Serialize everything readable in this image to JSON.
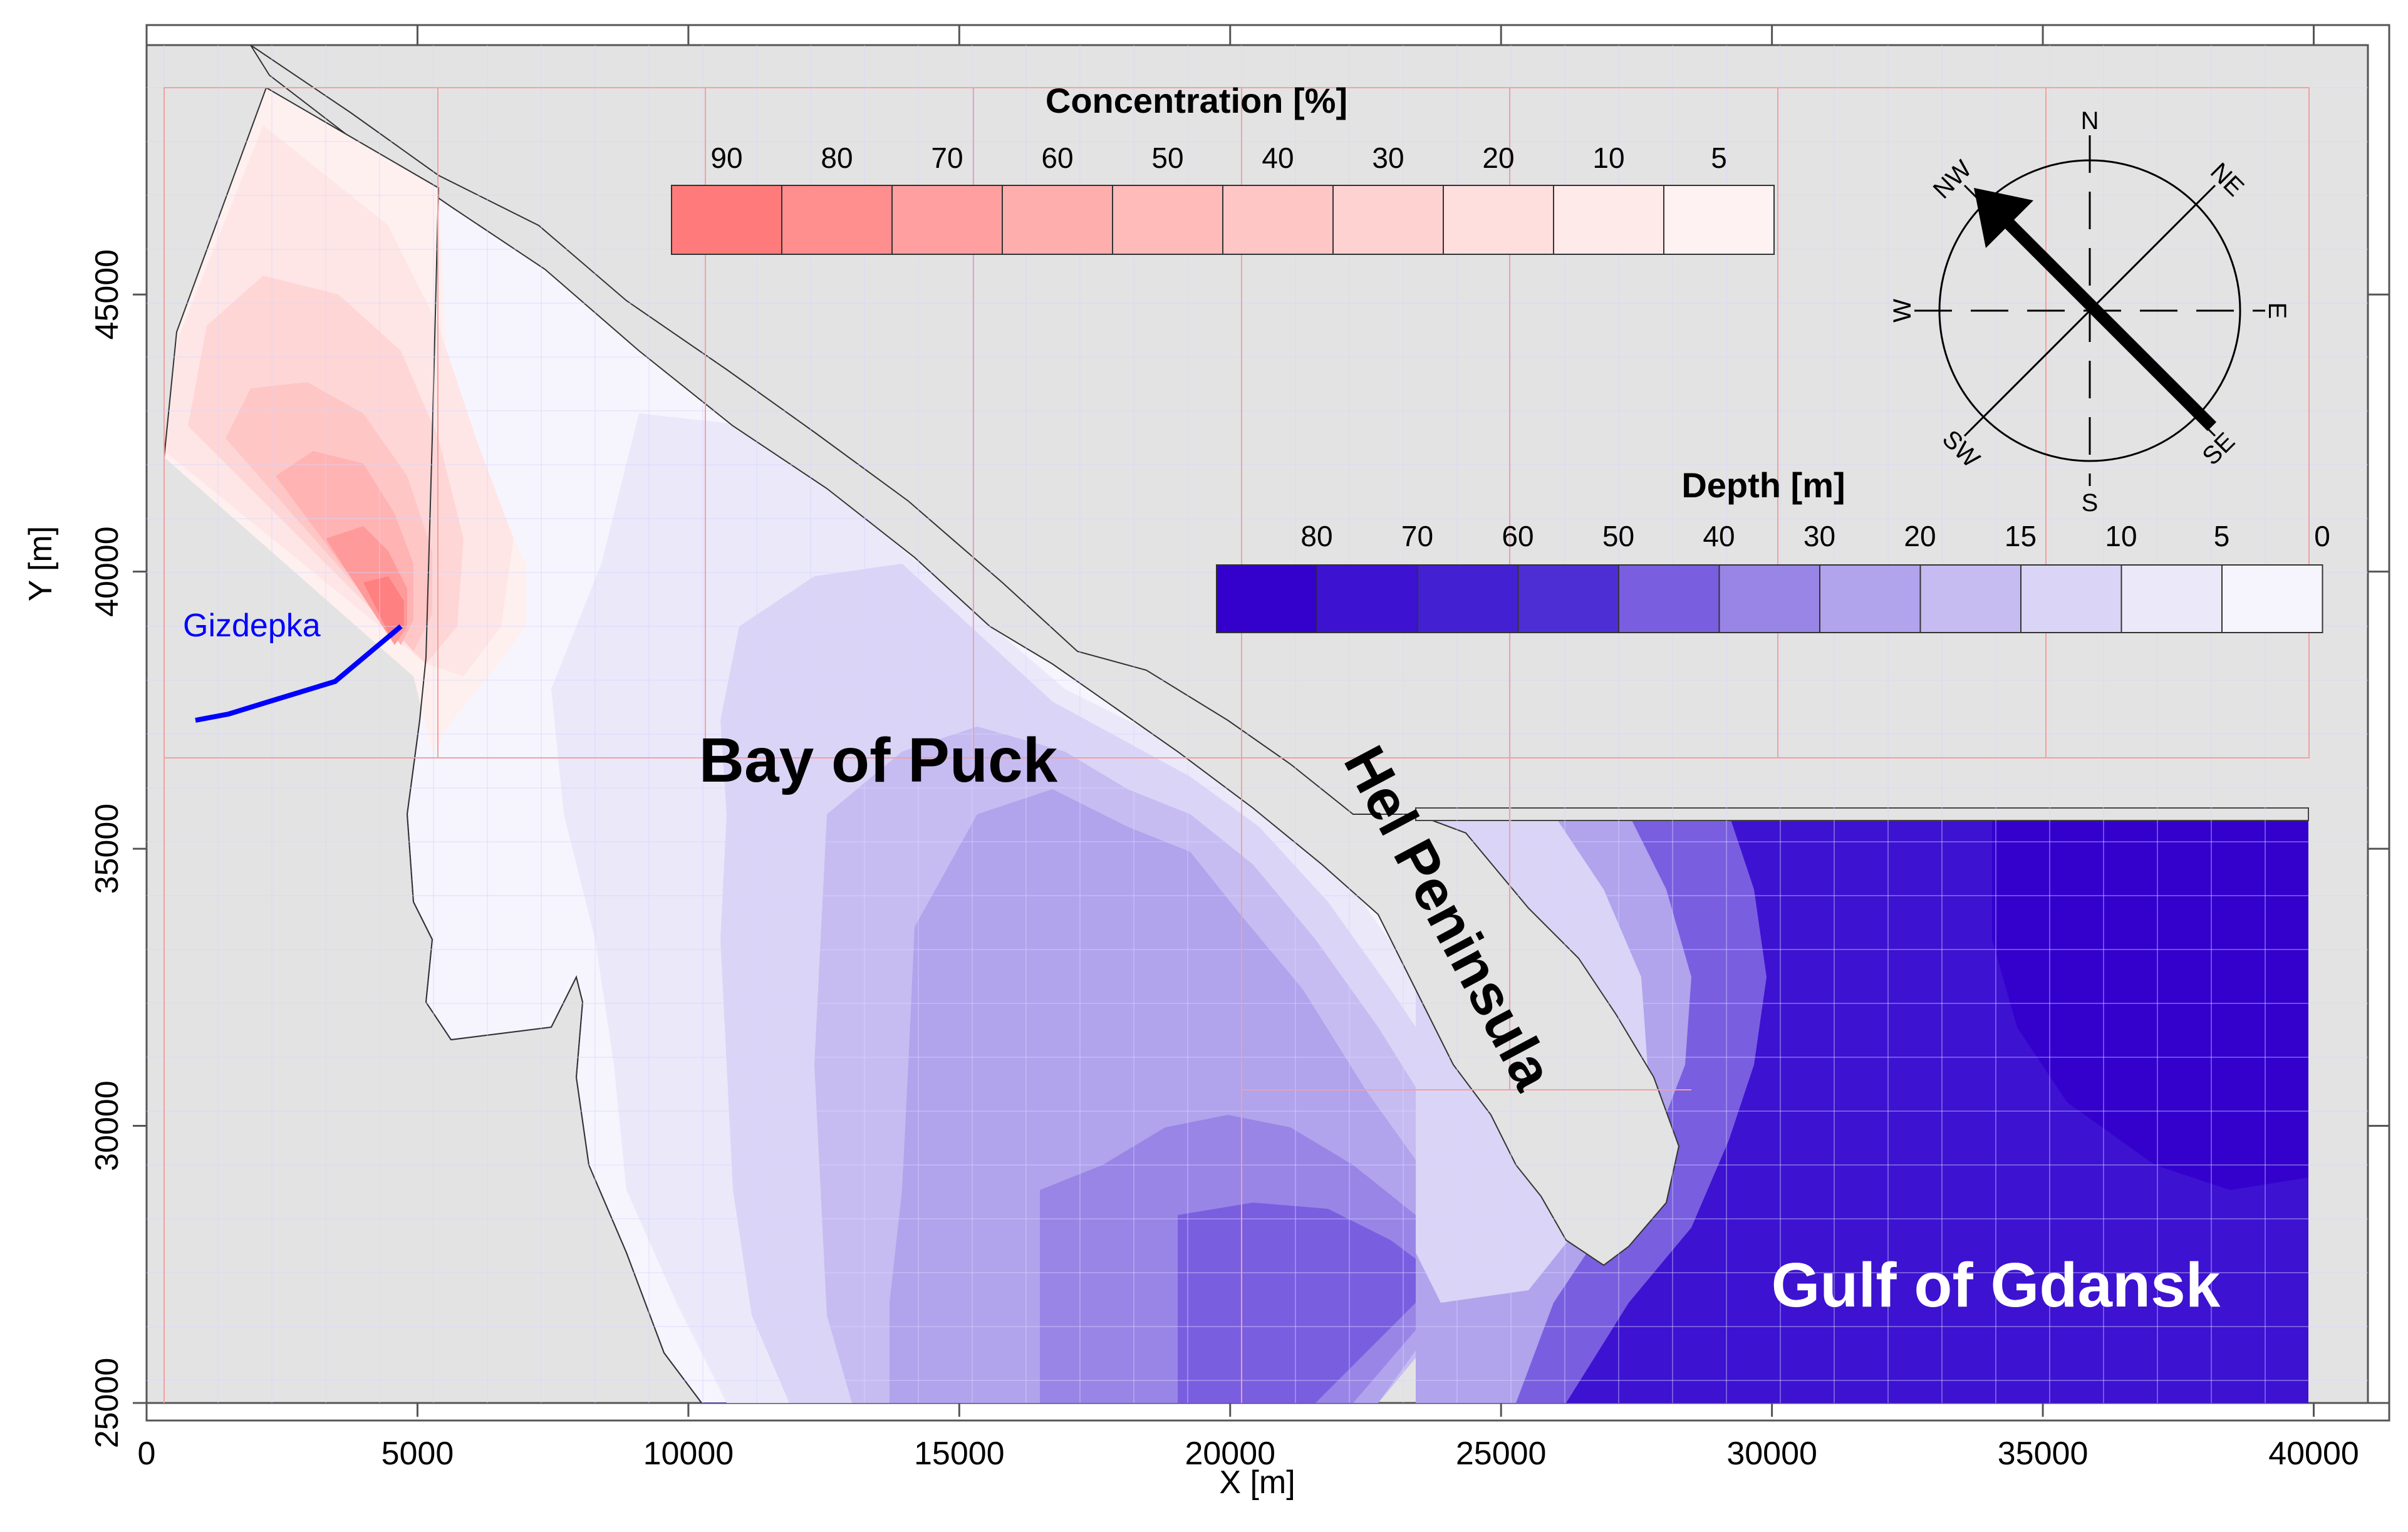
{
  "axes": {
    "xlabel": "X [m]",
    "ylabel": "Y [m]",
    "xlim": [
      0,
      41000
    ],
    "ylim": [
      25000,
      49500
    ],
    "xticks": [
      0,
      5000,
      10000,
      15000,
      20000,
      25000,
      30000,
      35000,
      40000
    ],
    "yticks": [
      25000,
      30000,
      35000,
      40000,
      45000
    ]
  },
  "concentration_legend": {
    "title": "Concentration [%]",
    "levels": [
      "90",
      "80",
      "70",
      "60",
      "50",
      "40",
      "30",
      "20",
      "10",
      "5"
    ],
    "colors": [
      "#ff7b7b",
      "#ff8e8e",
      "#ff9f9f",
      "#ffaeae",
      "#ffbaba",
      "#ffc6c6",
      "#ffd2d2",
      "#ffdede",
      "#ffeaea",
      "#fff2f2"
    ]
  },
  "depth_legend": {
    "title": "Depth [m]",
    "levels": [
      "80",
      "70",
      "60",
      "50",
      "40",
      "30",
      "20",
      "15",
      "10",
      "5",
      "0"
    ],
    "colors": [
      "#3300cc",
      "#3d12d1",
      "#4420d3",
      "#4d2ed5",
      "#7a5ee0",
      "#9985e6",
      "#b1a3ec",
      "#c6bcf1",
      "#dad4f6",
      "#ebe8fa",
      "#f6f5fd"
    ]
  },
  "compass": {
    "N": "N",
    "NE": "NE",
    "E": "E",
    "SE": "SE",
    "S": "S",
    "SW": "SW",
    "W": "W",
    "NW": "NW",
    "arrow_from": "SE",
    "arrow_to": "NW"
  },
  "labels": {
    "bay": "Bay of Puck",
    "peninsula": "Hel Peninsula",
    "gulf": "Gulf of Gdansk",
    "river": "Gizdepka"
  },
  "colors": {
    "land": "#e3e3e3",
    "river": "#0000ff",
    "arrow": "#000000",
    "grid_red": "#f3a0a0"
  }
}
